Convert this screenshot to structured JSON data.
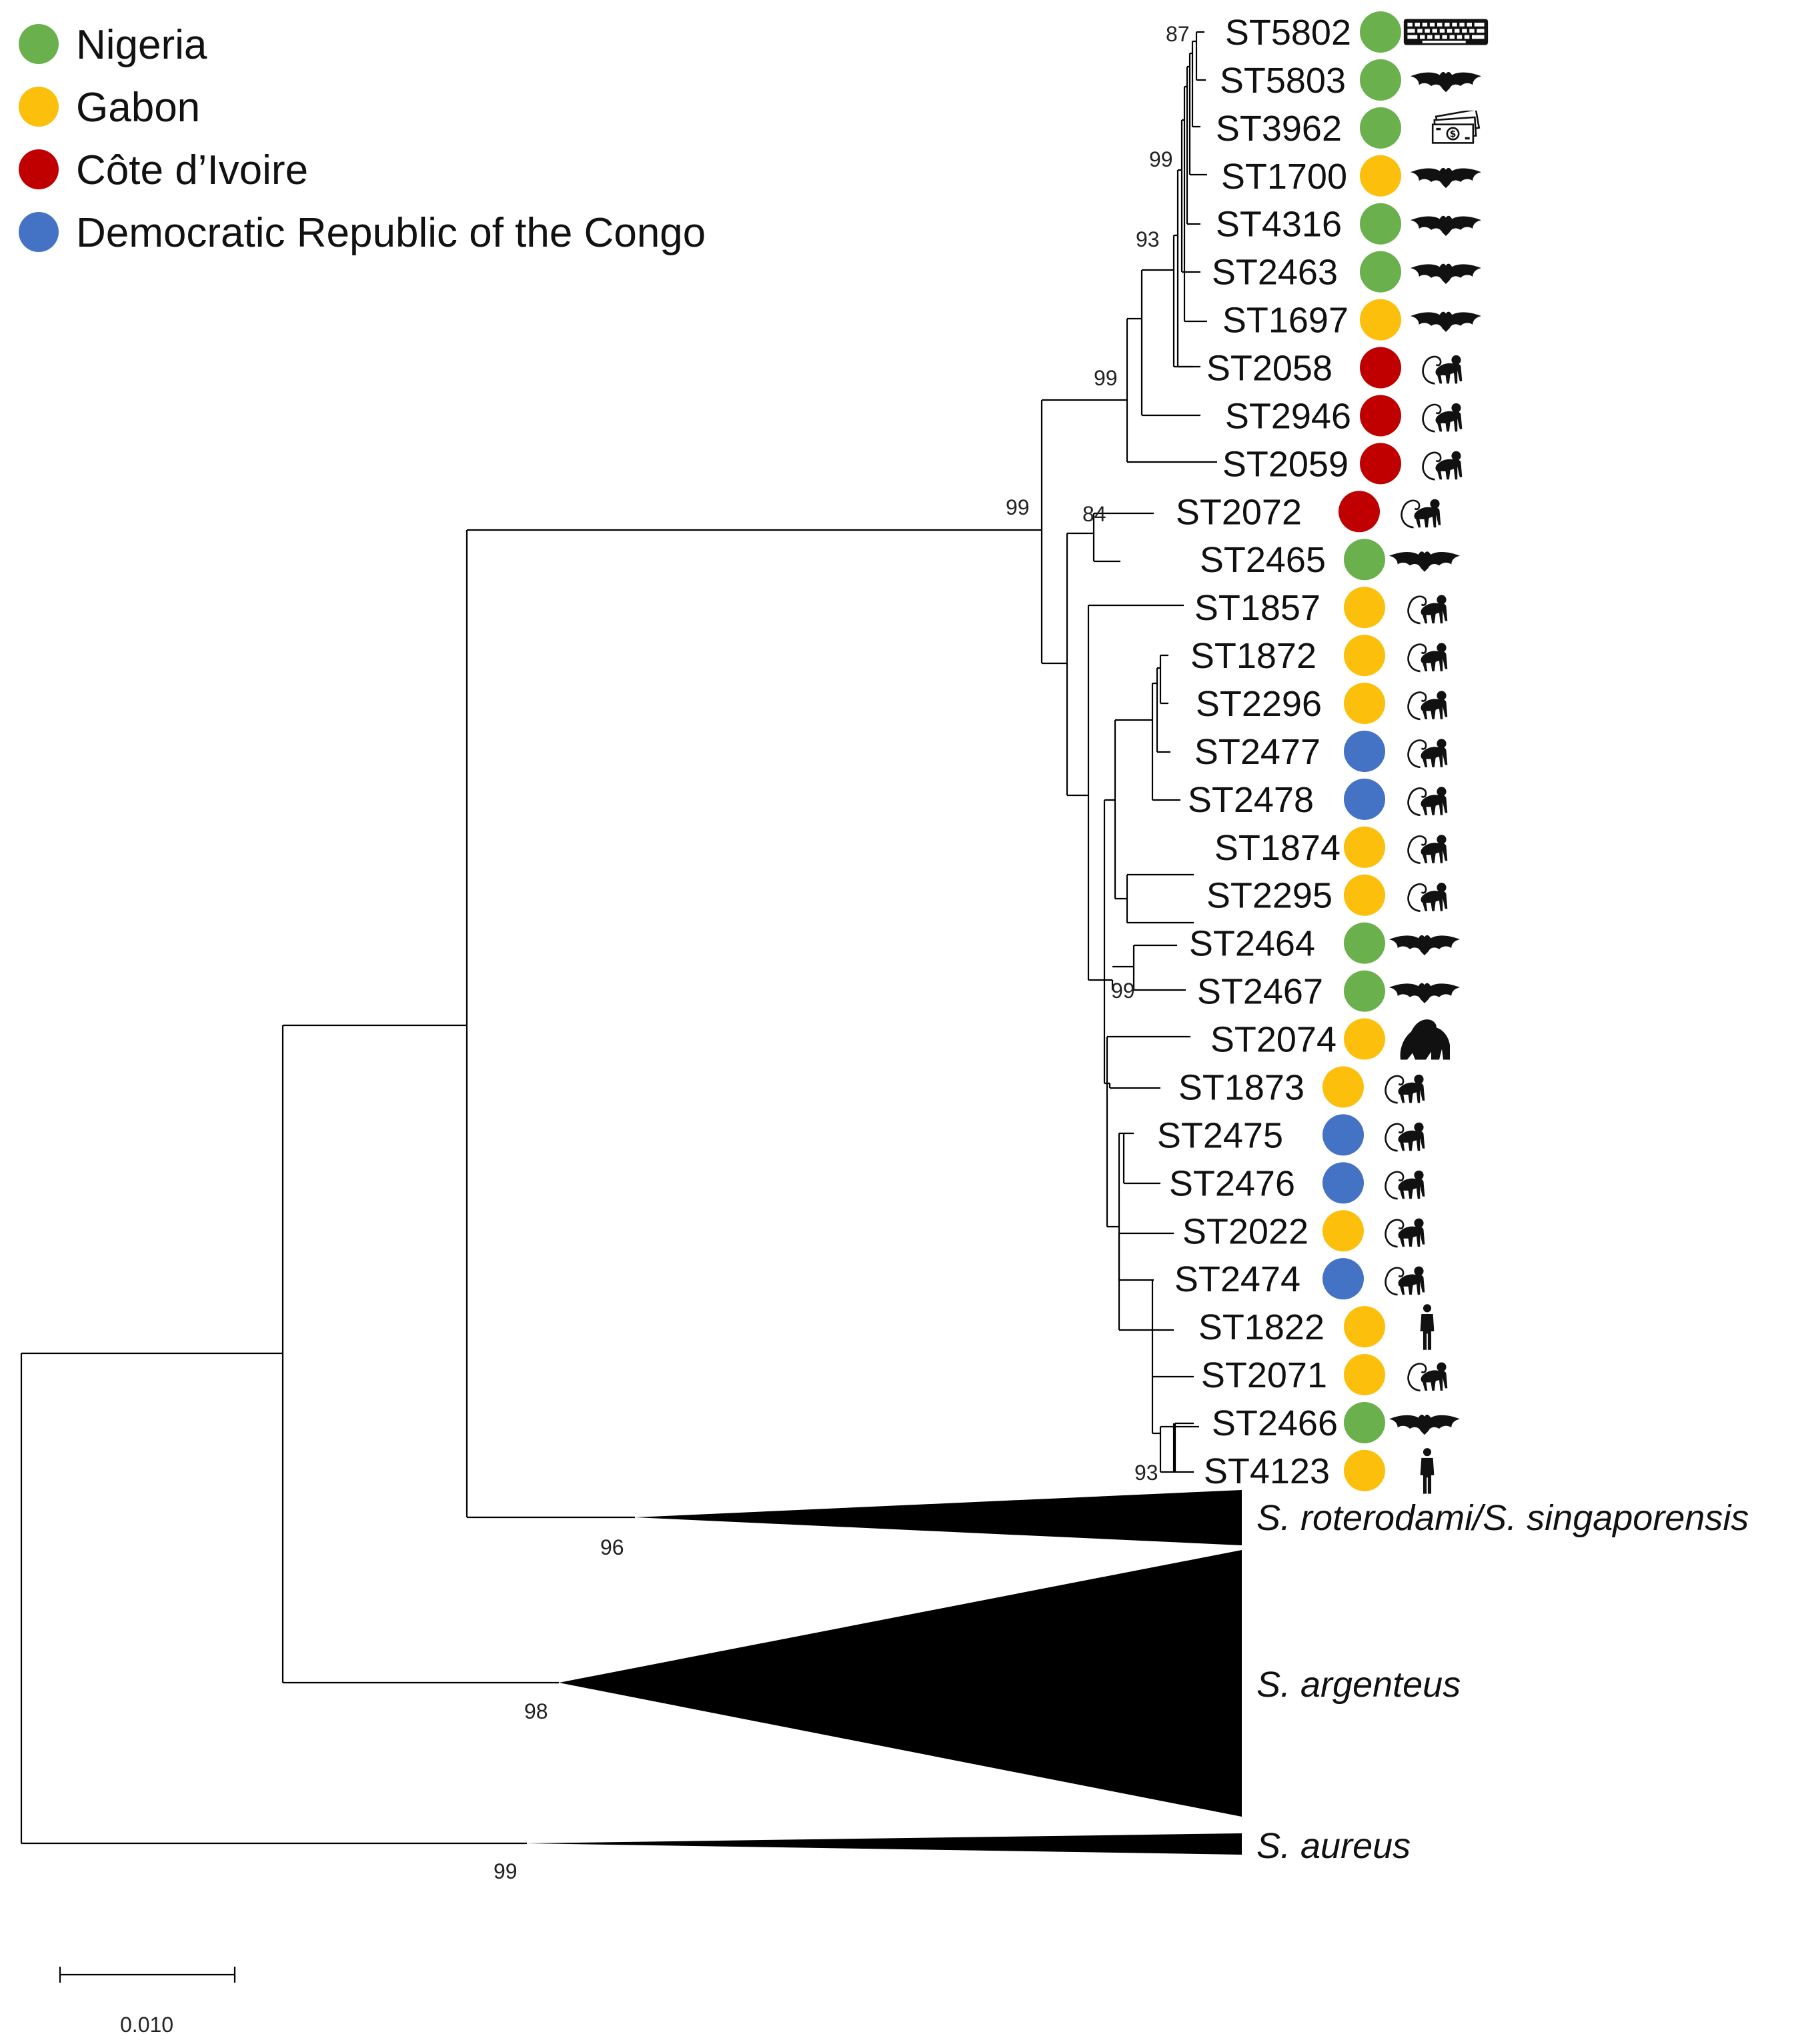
{
  "legend": [
    {
      "label": "Nigeria",
      "color": "#6ab04c"
    },
    {
      "label": "Gabon",
      "color": "#fbbf0c"
    },
    {
      "label": "Côte d’Ivoire",
      "color": "#c00000"
    },
    {
      "label": "Democratic Republic of the Congo",
      "color": "#4472c4"
    }
  ],
  "tips": [
    {
      "label": "ST5802",
      "country": "Nigeria",
      "host": "keyboard-icon"
    },
    {
      "label": "ST5803",
      "country": "Nigeria",
      "host": "bat-icon"
    },
    {
      "label": "ST3962",
      "country": "Nigeria",
      "host": "money-icon"
    },
    {
      "label": "ST1700",
      "country": "Gabon",
      "host": "bat-icon"
    },
    {
      "label": "ST4316",
      "country": "Nigeria",
      "host": "bat-icon"
    },
    {
      "label": "ST2463",
      "country": "Nigeria",
      "host": "bat-icon"
    },
    {
      "label": "ST1697",
      "country": "Gabon",
      "host": "bat-icon"
    },
    {
      "label": "ST2058",
      "country": "Côte d’Ivoire",
      "host": "monkey-icon"
    },
    {
      "label": "ST2946",
      "country": "Côte d’Ivoire",
      "host": "monkey-icon"
    },
    {
      "label": "ST2059",
      "country": "Côte d’Ivoire",
      "host": "monkey-icon"
    },
    {
      "label": "ST2072",
      "country": "Côte d’Ivoire",
      "host": "monkey-icon"
    },
    {
      "label": "ST2465",
      "country": "Nigeria",
      "host": "bat-icon"
    },
    {
      "label": "ST1857",
      "country": "Gabon",
      "host": "monkey-icon"
    },
    {
      "label": "ST1872",
      "country": "Gabon",
      "host": "monkey-icon"
    },
    {
      "label": "ST2296",
      "country": "Gabon",
      "host": "monkey-icon"
    },
    {
      "label": "ST2477",
      "country": "Democratic Republic of the Congo",
      "host": "monkey-icon"
    },
    {
      "label": "ST2478",
      "country": "Democratic Republic of the Congo",
      "host": "monkey-icon"
    },
    {
      "label": "ST1874",
      "country": "Gabon",
      "host": "monkey-icon"
    },
    {
      "label": "ST2295",
      "country": "Gabon",
      "host": "monkey-icon"
    },
    {
      "label": "ST2464",
      "country": "Nigeria",
      "host": "bat-icon"
    },
    {
      "label": "ST2467",
      "country": "Nigeria",
      "host": "bat-icon"
    },
    {
      "label": "ST2074",
      "country": "Gabon",
      "host": "gorilla-icon"
    },
    {
      "label": "ST1873",
      "country": "Gabon",
      "host": "monkey-icon"
    },
    {
      "label": "ST2475",
      "country": "Democratic Republic of the Congo",
      "host": "monkey-icon"
    },
    {
      "label": "ST2476",
      "country": "Democratic Republic of the Congo",
      "host": "monkey-icon"
    },
    {
      "label": "ST2022",
      "country": "Gabon",
      "host": "monkey-icon"
    },
    {
      "label": "ST2474",
      "country": "Democratic Republic of the Congo",
      "host": "monkey-icon"
    },
    {
      "label": "ST1822",
      "country": "Gabon",
      "host": "human-icon"
    },
    {
      "label": "ST2071",
      "country": "Gabon",
      "host": "monkey-icon"
    },
    {
      "label": "ST2466",
      "country": "Nigeria",
      "host": "bat-icon"
    },
    {
      "label": "ST4123",
      "country": "Gabon",
      "host": "human-icon"
    }
  ],
  "collapsed_clades": [
    {
      "label": "S. roterodami/S. singaporensis",
      "bootstrap": "96"
    },
    {
      "label": "S. argenteus",
      "bootstrap": "98"
    },
    {
      "label": "S. aureus",
      "bootstrap": "99"
    }
  ],
  "bootstrap_values": [
    "87",
    "99",
    "93",
    "99",
    "99",
    "84",
    "99",
    "93"
  ],
  "scale_bar": {
    "label": "0.010"
  }
}
